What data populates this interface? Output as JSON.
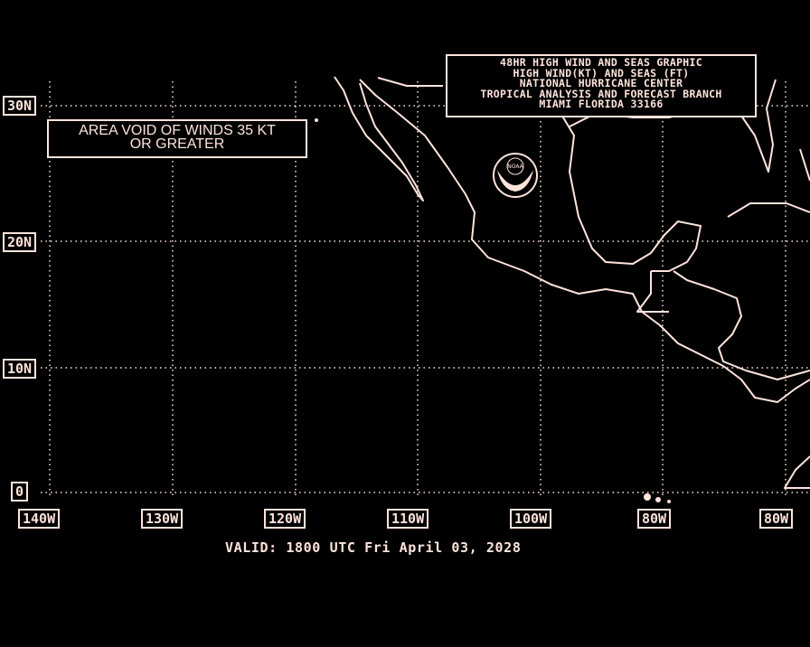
{
  "title_box": {
    "lines": [
      "48HR HIGH WIND AND SEAS GRAPHIC",
      "HIGH WIND(KT) AND SEAS (FT)",
      "NATIONAL HURRICANE CENTER",
      "TROPICAL ANALYSIS AND FORECAST BRANCH",
      "MIAMI FLORIDA  33166"
    ]
  },
  "void_note": {
    "line1": "AREA VOID OF WINDS 35 KT",
    "line2": "OR GREATER"
  },
  "lat_labels": [
    "30N",
    "20N",
    "10N",
    "0"
  ],
  "lon_labels": [
    "140W",
    "130W",
    "120W",
    "110W",
    "100W",
    "80W",
    "80W"
  ],
  "valid_text": "VALID: 1800 UTC Fri April 03, 2028",
  "logo": {
    "text": "NOAA"
  },
  "colors": {
    "background": "#000000",
    "foreground": "#ffe4dc"
  }
}
